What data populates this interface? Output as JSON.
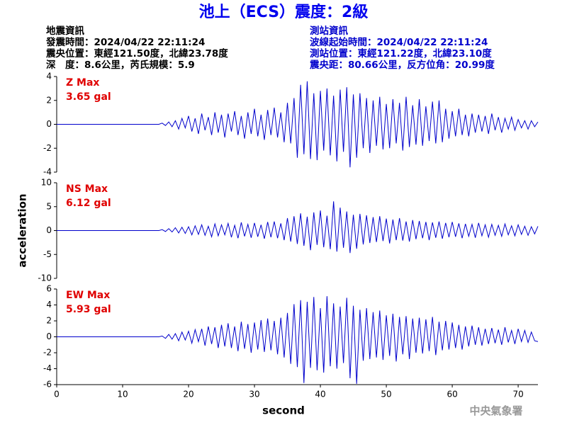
{
  "title": "池上（ECS）震度：2級",
  "info_left": [
    "地震資訊",
    "發震時間：2024/04/22 22:11:24",
    "震央位置：東經121.50度，北緯23.78度",
    "深　度：8.6公里，芮氏規模：5.9"
  ],
  "info_right": [
    "測站資訊",
    "波線起始時間：2024/04/22 22:11:24",
    "測站位置：東經121.22度，北緯23.10度",
    "震央距：80.66公里，反方位角：20.99度"
  ],
  "footer": "中央氣象署",
  "chart_data": [
    {
      "type": "line",
      "annotation": "Z Max",
      "annotation_value": "3.65 gal",
      "annotation_color": "#e00000",
      "xlim": [
        0,
        73
      ],
      "ylim": [
        -4,
        4
      ],
      "yticks": [
        -4,
        -2,
        0,
        2,
        4
      ],
      "x": [
        0,
        15,
        15.5,
        16,
        16.5,
        17,
        17.5,
        18,
        18.5,
        19,
        19.5,
        20,
        20.5,
        21,
        21.5,
        22,
        22.5,
        23,
        23.5,
        24,
        24.5,
        25,
        25.5,
        26,
        26.5,
        27,
        27.5,
        28,
        28.5,
        29,
        29.5,
        30,
        30.5,
        31,
        31.5,
        32,
        32.5,
        33,
        33.5,
        34,
        34.5,
        35,
        35.5,
        36,
        36.5,
        37,
        37.5,
        38,
        38.5,
        39,
        39.5,
        40,
        40.5,
        41,
        41.5,
        42,
        42.5,
        43,
        43.5,
        44,
        44.5,
        45,
        45.5,
        46,
        46.5,
        47,
        47.5,
        48,
        48.5,
        49,
        49.5,
        50,
        50.5,
        51,
        51.5,
        52,
        52.5,
        53,
        53.5,
        54,
        54.5,
        55,
        55.5,
        56,
        56.5,
        57,
        57.5,
        58,
        58.5,
        59,
        59.5,
        60,
        60.5,
        61,
        61.5,
        62,
        62.5,
        63,
        63.5,
        64,
        64.5,
        65,
        65.5,
        66,
        66.5,
        67,
        67.5,
        68,
        68.5,
        69,
        69.5,
        70,
        70.5,
        71,
        71.5,
        72,
        72.5,
        73
      ],
      "series": [
        {
          "color": "#0000cc",
          "values": [
            0,
            0,
            0,
            0.1,
            -0.1,
            0.2,
            -0.2,
            0.3,
            -0.4,
            0.5,
            -0.3,
            0.7,
            -0.6,
            0.5,
            -0.8,
            0.9,
            -0.5,
            0.6,
            -0.9,
            1.0,
            -0.7,
            0.8,
            -1.1,
            0.9,
            -0.6,
            1.1,
            -0.9,
            0.7,
            -1.2,
            1.0,
            -0.8,
            1.3,
            -1.0,
            0.8,
            -1.3,
            1.2,
            -0.9,
            1.4,
            -1.1,
            1.0,
            -1.5,
            1.8,
            -1.6,
            2.2,
            -2.8,
            3.3,
            -2.5,
            3.6,
            -2.9,
            2.6,
            -3.0,
            2.8,
            -2.2,
            3.0,
            -2.6,
            2.4,
            -3.1,
            2.9,
            -2.3,
            3.1,
            -3.6,
            2.5,
            -2.8,
            2.6,
            -2.0,
            2.2,
            -2.4,
            2.0,
            -1.8,
            2.3,
            -2.1,
            1.7,
            -2.0,
            2.1,
            -1.6,
            1.8,
            -2.2,
            2.3,
            -1.9,
            1.6,
            -1.7,
            2.1,
            -1.8,
            1.5,
            -1.4,
            1.9,
            -1.6,
            2.0,
            -1.5,
            1.3,
            -1.2,
            1.1,
            -1.0,
            1.3,
            -0.9,
            0.8,
            -1.0,
            0.9,
            -0.7,
            0.8,
            -0.6,
            0.7,
            -0.8,
            0.9,
            -0.5,
            0.6,
            -0.7,
            0.5,
            -0.4,
            0.6,
            -0.5,
            0.4,
            -0.3,
            0.3,
            -0.4,
            0.3,
            -0.2,
            0.2
          ]
        }
      ]
    },
    {
      "type": "line",
      "annotation": "NS Max",
      "annotation_value": "6.12 gal",
      "annotation_color": "#e00000",
      "ylabel": "acceleration",
      "xlim": [
        0,
        73
      ],
      "ylim": [
        -10,
        10
      ],
      "yticks": [
        -10,
        -5,
        0,
        5,
        10
      ],
      "x": [
        0,
        15,
        15.5,
        16,
        16.5,
        17,
        17.5,
        18,
        18.5,
        19,
        19.5,
        20,
        20.5,
        21,
        21.5,
        22,
        22.5,
        23,
        23.5,
        24,
        24.5,
        25,
        25.5,
        26,
        26.5,
        27,
        27.5,
        28,
        28.5,
        29,
        29.5,
        30,
        30.5,
        31,
        31.5,
        32,
        32.5,
        33,
        33.5,
        34,
        34.5,
        35,
        35.5,
        36,
        36.5,
        37,
        37.5,
        38,
        38.5,
        39,
        39.5,
        40,
        40.5,
        41,
        41.5,
        42,
        42.5,
        43,
        43.5,
        44,
        44.5,
        45,
        45.5,
        46,
        46.5,
        47,
        47.5,
        48,
        48.5,
        49,
        49.5,
        50,
        50.5,
        51,
        51.5,
        52,
        52.5,
        53,
        53.5,
        54,
        54.5,
        55,
        55.5,
        56,
        56.5,
        57,
        57.5,
        58,
        58.5,
        59,
        59.5,
        60,
        60.5,
        61,
        61.5,
        62,
        62.5,
        63,
        63.5,
        64,
        64.5,
        65,
        65.5,
        66,
        66.5,
        67,
        67.5,
        68,
        68.5,
        69,
        69.5,
        70,
        70.5,
        71,
        71.5,
        72,
        72.5,
        73
      ],
      "series": [
        {
          "color": "#0000cc",
          "values": [
            0,
            0,
            0,
            0.2,
            -0.2,
            0.4,
            -0.3,
            0.6,
            -0.5,
            0.7,
            -0.6,
            0.8,
            -0.9,
            1.0,
            -0.8,
            1.2,
            -1.0,
            0.9,
            -1.3,
            1.4,
            -1.1,
            1.2,
            -0.9,
            1.5,
            -1.4,
            1.1,
            -1.6,
            1.7,
            -1.2,
            1.3,
            -1.5,
            1.6,
            -1.3,
            1.2,
            -1.7,
            1.8,
            -1.4,
            1.9,
            -1.6,
            1.5,
            -2.0,
            2.6,
            -2.3,
            3.0,
            -2.8,
            3.6,
            -3.2,
            2.9,
            -4.1,
            3.8,
            -3.0,
            4.2,
            -3.5,
            3.1,
            -3.9,
            6.1,
            -4.4,
            4.8,
            -3.6,
            4.0,
            -4.7,
            3.3,
            -3.8,
            3.5,
            -2.9,
            3.2,
            -2.6,
            2.8,
            -2.4,
            3.0,
            -2.2,
            2.5,
            -2.7,
            2.3,
            -2.0,
            2.6,
            -2.1,
            1.9,
            -2.3,
            2.2,
            -1.8,
            2.0,
            -1.6,
            1.8,
            -2.0,
            1.7,
            -1.5,
            1.9,
            -1.7,
            1.6,
            -1.4,
            1.8,
            -1.3,
            1.5,
            -1.6,
            1.4,
            -1.2,
            1.3,
            -1.5,
            1.6,
            -1.1,
            1.2,
            -1.4,
            1.3,
            -1.0,
            1.1,
            -1.2,
            1.4,
            -0.9,
            1.0,
            -1.1,
            1.2,
            -0.8,
            0.9,
            -1.0,
            0.8,
            -0.7,
            0.9
          ]
        }
      ]
    },
    {
      "type": "line",
      "annotation": "EW Max",
      "annotation_value": "5.93 gal",
      "annotation_color": "#e00000",
      "xlabel": "second",
      "xlim": [
        0,
        73
      ],
      "xticks": [
        0,
        10,
        20,
        30,
        40,
        50,
        60,
        70
      ],
      "ylim": [
        -6,
        6
      ],
      "yticks": [
        -6,
        -4,
        -2,
        0,
        2,
        4,
        6
      ],
      "x": [
        0,
        15,
        15.5,
        16,
        16.5,
        17,
        17.5,
        18,
        18.5,
        19,
        19.5,
        20,
        20.5,
        21,
        21.5,
        22,
        22.5,
        23,
        23.5,
        24,
        24.5,
        25,
        25.5,
        26,
        26.5,
        27,
        27.5,
        28,
        28.5,
        29,
        29.5,
        30,
        30.5,
        31,
        31.5,
        32,
        32.5,
        33,
        33.5,
        34,
        34.5,
        35,
        35.5,
        36,
        36.5,
        37,
        37.5,
        38,
        38.5,
        39,
        39.5,
        40,
        40.5,
        41,
        41.5,
        42,
        42.5,
        43,
        43.5,
        44,
        44.5,
        45,
        45.5,
        46,
        46.5,
        47,
        47.5,
        48,
        48.5,
        49,
        49.5,
        50,
        50.5,
        51,
        51.5,
        52,
        52.5,
        53,
        53.5,
        54,
        54.5,
        55,
        55.5,
        56,
        56.5,
        57,
        57.5,
        58,
        58.5,
        59,
        59.5,
        60,
        60.5,
        61,
        61.5,
        62,
        62.5,
        63,
        63.5,
        64,
        64.5,
        65,
        65.5,
        66,
        66.5,
        67,
        67.5,
        68,
        68.5,
        69,
        69.5,
        70,
        70.5,
        71,
        71.5,
        72,
        72.5,
        73
      ],
      "series": [
        {
          "color": "#0000cc",
          "values": [
            0,
            0,
            0,
            0.1,
            -0.2,
            0.3,
            -0.3,
            0.4,
            -0.5,
            0.6,
            -0.4,
            0.7,
            -0.8,
            0.9,
            -0.6,
            1.0,
            -1.1,
            1.3,
            -0.9,
            1.2,
            -1.4,
            1.5,
            -1.2,
            1.7,
            -1.4,
            1.3,
            -1.8,
            1.9,
            -1.5,
            1.6,
            -2.0,
            1.8,
            -1.6,
            2.1,
            -1.9,
            2.3,
            -1.7,
            2.0,
            -2.2,
            2.4,
            -2.6,
            3.0,
            -3.4,
            4.1,
            -3.8,
            4.6,
            -5.8,
            4.4,
            -3.9,
            5.0,
            -4.2,
            3.6,
            -4.5,
            5.1,
            -3.7,
            4.2,
            -4.0,
            3.8,
            -3.3,
            4.9,
            -5.2,
            3.9,
            -5.9,
            3.4,
            -3.0,
            3.6,
            -2.8,
            3.1,
            -2.6,
            3.3,
            -2.9,
            2.7,
            -2.4,
            2.9,
            -3.1,
            2.5,
            -2.2,
            2.6,
            -2.8,
            2.3,
            -2.0,
            2.4,
            -2.1,
            2.2,
            -1.8,
            2.5,
            -2.3,
            1.9,
            -1.7,
            2.0,
            -1.6,
            1.8,
            -1.4,
            1.5,
            -1.6,
            1.3,
            -1.2,
            1.4,
            -1.0,
            1.2,
            -1.1,
            1.0,
            -0.9,
            1.1,
            -0.8,
            0.9,
            -1.0,
            1.2,
            -0.7,
            0.8,
            -0.9,
            1.0,
            -0.6,
            0.8,
            -0.7,
            0.6,
            -0.5,
            -0.6
          ]
        }
      ]
    }
  ]
}
